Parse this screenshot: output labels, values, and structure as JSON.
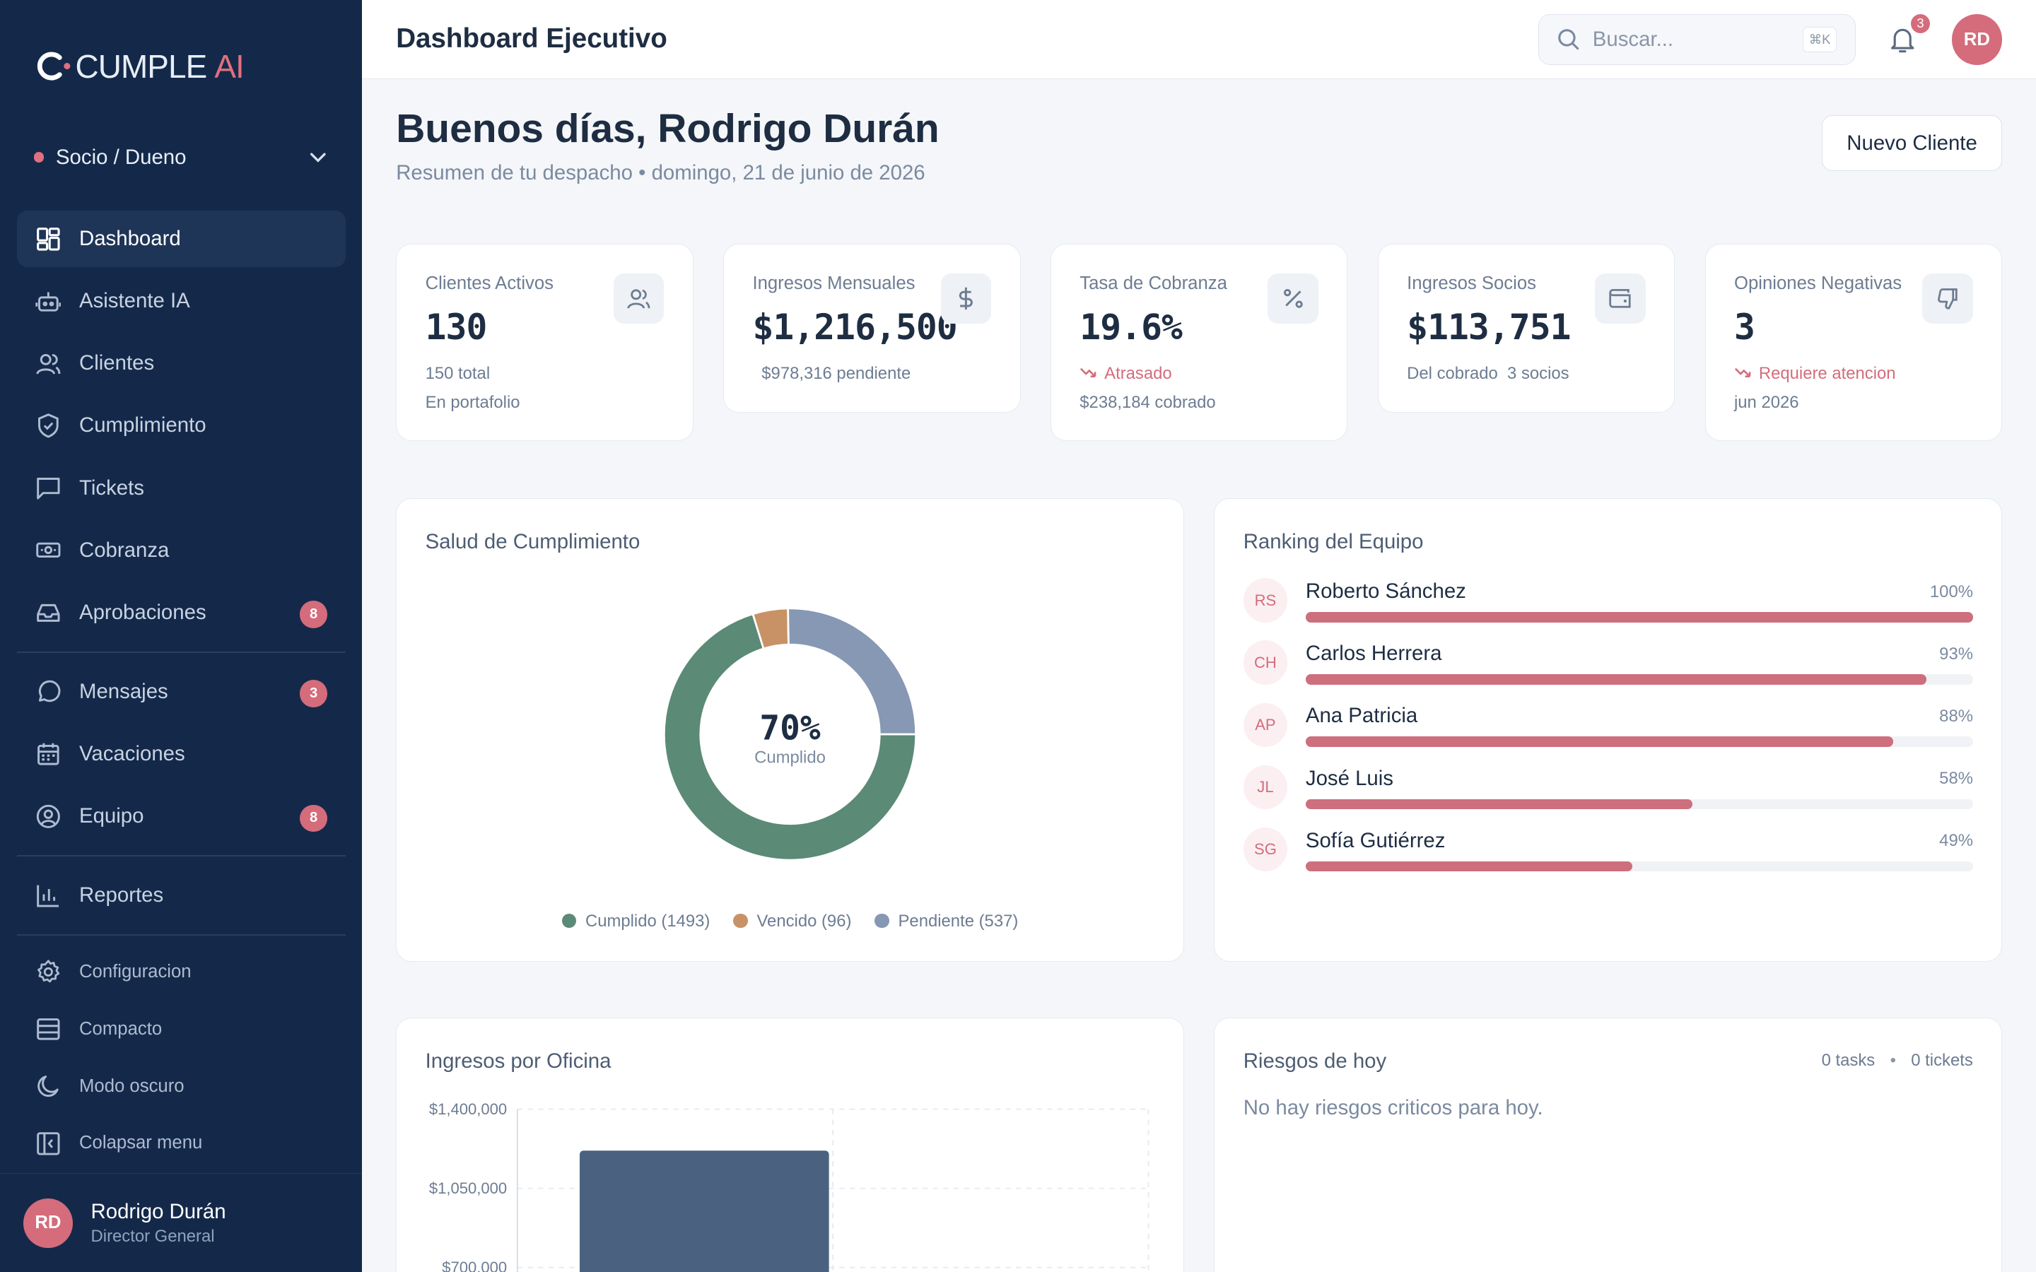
{
  "brand": {
    "name": "CUMPLE",
    "suffix": "AI"
  },
  "role_selector": {
    "label": "Socio / Dueno"
  },
  "nav": [
    {
      "label": "Dashboard",
      "icon": "dashboard-icon",
      "active": true
    },
    {
      "label": "Asistente IA",
      "icon": "bot-icon"
    },
    {
      "label": "Clientes",
      "icon": "users-icon"
    },
    {
      "label": "Cumplimiento",
      "icon": "shield-check-icon"
    },
    {
      "label": "Tickets",
      "icon": "message-square-icon"
    },
    {
      "label": "Cobranza",
      "icon": "banknote-icon"
    },
    {
      "label": "Aprobaciones",
      "icon": "inbox-icon",
      "badge": "8"
    },
    {
      "label": "Mensajes",
      "icon": "message-circle-icon",
      "badge": "3"
    },
    {
      "label": "Vacaciones",
      "icon": "calendar-icon"
    },
    {
      "label": "Equipo",
      "icon": "user-circle-icon",
      "badge": "8"
    },
    {
      "label": "Reportes",
      "icon": "bar-chart-icon"
    }
  ],
  "nav_settings": [
    {
      "label": "Configuracion",
      "icon": "gear-icon"
    },
    {
      "label": "Compacto",
      "icon": "rows-icon"
    },
    {
      "label": "Modo oscuro",
      "icon": "moon-icon"
    },
    {
      "label": "Colapsar menu",
      "icon": "sidebar-collapse-icon"
    }
  ],
  "user": {
    "initials": "RD",
    "name": "Rodrigo Durán",
    "role": "Director General"
  },
  "topbar": {
    "title": "Dashboard Ejecutivo",
    "search_placeholder": "Buscar...",
    "search_shortcut": "⌘K",
    "notifications": "3",
    "avatar": "RD"
  },
  "header": {
    "greeting": "Buenos días, Rodrigo Durán",
    "subtitle": "Resumen de tu despacho • domingo, 21 de junio de 2026",
    "new_button": "Nuevo Cliente"
  },
  "kpis": [
    {
      "label": "Clientes Activos",
      "value": "130",
      "line1": "150 total",
      "line2": "En portafolio",
      "icon": "users-icon"
    },
    {
      "label": "Ingresos Mensuales",
      "value": "$1,216,500",
      "line1": "$978,316 pendiente",
      "line2": "",
      "icon": "dollar-icon"
    },
    {
      "label": "Tasa de Cobranza",
      "value": "19.6%",
      "line1": "Atrasado",
      "line2": "$238,184 cobrado",
      "icon": "percent-icon",
      "trend": "down"
    },
    {
      "label": "Ingresos Socios",
      "value": "$113,751",
      "line1": "Del cobrado  3 socios",
      "line2": "",
      "icon": "wallet-icon"
    },
    {
      "label": "Opiniones Negativas",
      "value": "3",
      "line1": "Requiere atencion",
      "line2": "jun 2026",
      "icon": "thumbs-down-icon",
      "trend": "down"
    }
  ],
  "compliance": {
    "title": "Salud de Cumplimiento",
    "center_value": "70%",
    "center_label": "Cumplido",
    "legend": [
      "Cumplido (1493)",
      "Vencido (96)",
      "Pendiente (537)"
    ],
    "colors": [
      "#5b8a77",
      "#c89266",
      "#8698b3"
    ]
  },
  "ranking": {
    "title": "Ranking del Equipo",
    "rows": [
      {
        "initials": "RS",
        "name": "Roberto Sánchez",
        "pct_label": "100%"
      },
      {
        "initials": "CH",
        "name": "Carlos Herrera",
        "pct_label": "93%"
      },
      {
        "initials": "AP",
        "name": "Ana Patricia",
        "pct_label": "88%"
      },
      {
        "initials": "JL",
        "name": "José Luis",
        "pct_label": "58%"
      },
      {
        "initials": "SG",
        "name": "Sofía Gutiérrez",
        "pct_label": "49%"
      }
    ]
  },
  "office_income": {
    "title": "Ingresos por Oficina",
    "tick_labels": [
      "$1,400,000",
      "$1,050,000",
      "$700,000"
    ]
  },
  "risks": {
    "title": "Riesgos de hoy",
    "tasks": "0 tasks",
    "tickets": "0 tickets",
    "empty": "No hay riesgos criticos para hoy."
  },
  "chart_data": [
    {
      "type": "pie",
      "title": "Salud de Cumplimiento",
      "categories": [
        "Cumplido",
        "Vencido",
        "Pendiente"
      ],
      "values": [
        1493,
        96,
        537
      ]
    },
    {
      "type": "bar",
      "title": "Ingresos por Oficina",
      "categories": [
        ""
      ],
      "values": [
        1216500
      ],
      "ylim": [
        700000,
        1400000
      ],
      "yticks": [
        700000,
        1050000,
        1400000
      ]
    }
  ]
}
